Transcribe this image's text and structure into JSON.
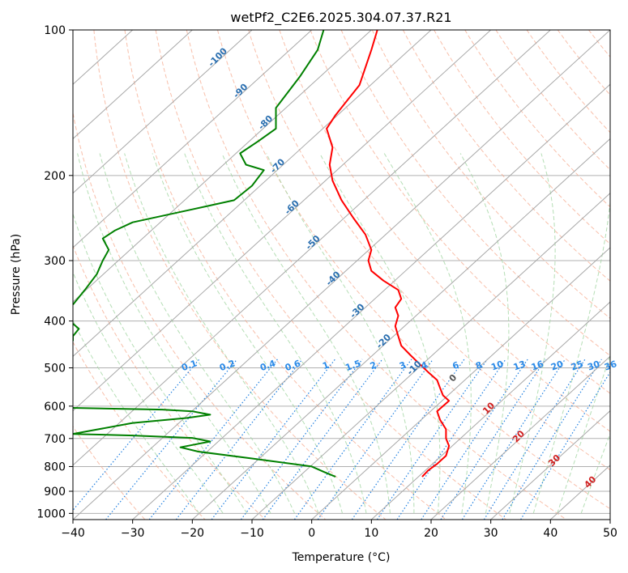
{
  "chart_data": {
    "type": "line",
    "title": "wetPf2_C2E6.2025.304.07.37.R21",
    "xlabel": "Temperature (°C)",
    "ylabel": "Pressure (hPa)",
    "xlim": [
      -40,
      50
    ],
    "ylim": [
      1030,
      100
    ],
    "y_scale": "log",
    "grid": true,
    "x_ticks": [
      -40,
      -30,
      -20,
      -10,
      0,
      10,
      20,
      30,
      40,
      50
    ],
    "y_ticks": [
      100,
      200,
      300,
      400,
      500,
      600,
      700,
      800,
      900,
      1000
    ],
    "series": [
      {
        "color": "#ff0000",
        "points": [
          [
            11,
            100
          ],
          [
            10,
            110
          ],
          [
            8,
            130
          ],
          [
            4,
            150
          ],
          [
            2.5,
            160
          ],
          [
            3.5,
            175
          ],
          [
            3,
            190
          ],
          [
            3.5,
            205
          ],
          [
            5,
            225
          ],
          [
            7,
            245
          ],
          [
            9,
            265
          ],
          [
            10,
            285
          ],
          [
            9.5,
            300
          ],
          [
            10,
            315
          ],
          [
            12,
            330
          ],
          [
            14.5,
            345
          ],
          [
            15,
            360
          ],
          [
            14,
            375
          ],
          [
            14.5,
            390
          ],
          [
            14,
            410
          ],
          [
            14.5,
            430
          ],
          [
            15,
            450
          ],
          [
            16.5,
            470
          ],
          [
            18,
            490
          ],
          [
            19.5,
            510
          ],
          [
            21,
            530
          ],
          [
            21.5,
            550
          ],
          [
            22,
            570
          ],
          [
            23,
            585
          ],
          [
            22,
            600
          ],
          [
            21,
            615
          ],
          [
            21.5,
            640
          ],
          [
            22.5,
            670
          ],
          [
            22.5,
            700
          ],
          [
            23,
            725
          ],
          [
            22.5,
            760
          ],
          [
            21,
            790
          ],
          [
            19.5,
            815
          ],
          [
            18.5,
            840
          ]
        ]
      },
      {
        "color": "#008000",
        "points": [
          [
            2,
            100
          ],
          [
            1,
            110
          ],
          [
            -2,
            125
          ],
          [
            -6,
            145
          ],
          [
            -6,
            160
          ],
          [
            -9,
            170
          ],
          [
            -12,
            180
          ],
          [
            -11,
            190
          ],
          [
            -8,
            195
          ],
          [
            -10,
            210
          ],
          [
            -13,
            225
          ],
          [
            -20,
            235
          ],
          [
            -30,
            250
          ],
          [
            -33,
            260
          ],
          [
            -35,
            270
          ],
          [
            -34,
            285
          ],
          [
            -35,
            300
          ],
          [
            -36,
            320
          ],
          [
            -38,
            345
          ],
          [
            -40,
            370
          ]
        ]
      },
      {
        "color": "#008000",
        "points": [
          [
            -40,
            405
          ],
          [
            -39,
            415
          ],
          [
            -40,
            430
          ],
          [
            -40,
            440
          ]
        ]
      },
      {
        "color": "#008000",
        "points": [
          [
            -40,
            605
          ],
          [
            -25,
            610
          ],
          [
            -20,
            615
          ],
          [
            -17,
            625
          ],
          [
            -21,
            635
          ],
          [
            -30,
            650
          ],
          [
            -40,
            685
          ],
          [
            -30,
            690
          ],
          [
            -20,
            698
          ],
          [
            -17,
            710
          ],
          [
            -22,
            730
          ],
          [
            -19,
            745
          ],
          [
            -10,
            770
          ],
          [
            0,
            800
          ],
          [
            2,
            820
          ],
          [
            4,
            840
          ]
        ]
      }
    ],
    "dry_adiabat_labels": [
      "-100",
      "-90",
      "-80",
      "-70",
      "-60",
      "-50",
      "-40",
      "-30",
      "-20",
      "-10"
    ],
    "mixing_ratio_labels": [
      "0.1",
      "0.2",
      "0.4",
      "0.6",
      "1",
      "1.5",
      "2",
      "3",
      "4",
      "6",
      "8",
      "10",
      "13",
      "16",
      "20",
      "25",
      "30",
      "36"
    ],
    "moist_adiabat_labels": [
      "0",
      "10",
      "20",
      "30",
      "40"
    ]
  }
}
